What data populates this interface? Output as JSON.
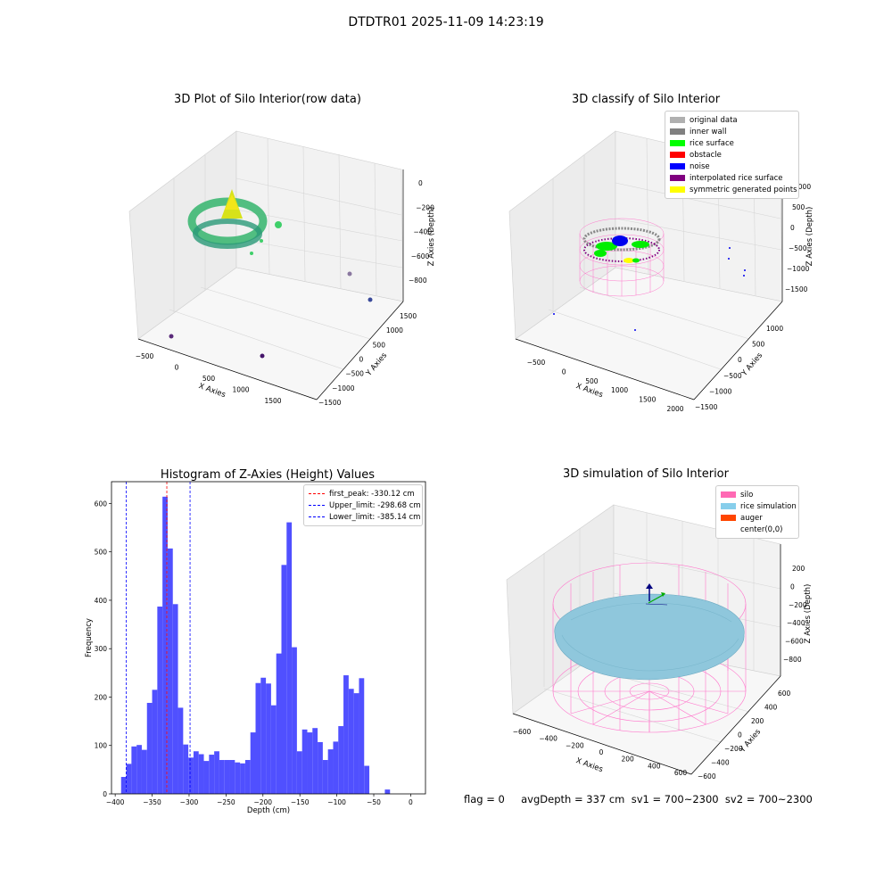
{
  "suptitle": "DTDTR01 2025-11-09 14:23:19",
  "colors": {
    "histogram_bar": "#5050ff",
    "first_peak_line": "#ff0000",
    "limit_lines": "#0000ff",
    "pane_fill": "#f2f2f2",
    "silo_wire": "#ff77cc",
    "rice_fill": "#8fc7dc"
  },
  "panels": {
    "raw": {
      "title": "3D Plot of Silo Interior(row data)",
      "xlabel": "X Axies",
      "ylabel": "Y Axies",
      "zlabel": "Z Axies (Depth)",
      "xticks": [
        "−500",
        "0",
        "500",
        "1000",
        "1500"
      ],
      "yticks": [
        "−1500",
        "−1000",
        "−500",
        "0",
        "500",
        "1000",
        "1500"
      ],
      "zticks": [
        "0",
        "−200",
        "−400",
        "−600",
        "−800"
      ]
    },
    "classify": {
      "title": "3D classify of Silo Interior",
      "xlabel": "X Axies",
      "ylabel": "Y Axies",
      "zlabel": "Z Axies (Depth)",
      "xticks": [
        "−500",
        "0",
        "500",
        "1000",
        "1500",
        "2000"
      ],
      "yticks": [
        "−1500",
        "−1000",
        "−500",
        "0",
        "500",
        "1000"
      ],
      "zticks": [
        "1000",
        "500",
        "0",
        "−500",
        "−1000",
        "−1500"
      ],
      "legend": [
        {
          "label": "original data",
          "color": "#b0b0b0"
        },
        {
          "label": "inner wall",
          "color": "#808080"
        },
        {
          "label": "rice surface",
          "color": "#00ff00"
        },
        {
          "label": "obstacle",
          "color": "#ff0000"
        },
        {
          "label": "noise",
          "color": "#0000ff"
        },
        {
          "label": "interpolated rice surface",
          "color": "#800080"
        },
        {
          "label": "symmetric generated points",
          "color": "#ffff00"
        }
      ]
    },
    "simulation": {
      "title": "3D simulation of Silo Interior",
      "xlabel": "X Axies",
      "ylabel": "Y Axies",
      "zlabel": "Z Axies (Depth)",
      "xticks": [
        "−600",
        "−400",
        "−200",
        "0",
        "200",
        "400",
        "600"
      ],
      "yticks": [
        "−600",
        "−400",
        "−200",
        "0",
        "200",
        "400",
        "600"
      ],
      "zticks": [
        "200",
        "0",
        "−200",
        "−400",
        "−600",
        "−800"
      ],
      "legend": [
        {
          "label": "silo",
          "color": "#ff69b4"
        },
        {
          "label": "rice simulation",
          "color": "#87ceeb"
        },
        {
          "label": "auger",
          "color": "#ff4500"
        },
        {
          "label": "center(0,0)",
          "color": ""
        }
      ]
    }
  },
  "footer": "flag = 0     avgDepth = 337 cm  sv1 = 700~2300  sv2 = 700~2300",
  "chart_data": [
    {
      "type": "bar",
      "title": "Histogram of Z-Axies (Height) Values",
      "xlabel": "Depth (cm)",
      "ylabel": "Frequency",
      "bin_width": 7,
      "bin_starts": [
        -392,
        -385,
        -378,
        -371,
        -364,
        -357,
        -350,
        -343,
        -336,
        -329,
        -322,
        -315,
        -308,
        -301,
        -294,
        -287,
        -280,
        -273,
        -266,
        -259,
        -252,
        -245,
        -238,
        -231,
        -224,
        -217,
        -210,
        -203,
        -196,
        -189,
        -182,
        -175,
        -168,
        -161,
        -154,
        -147,
        -140,
        -133,
        -126,
        -119,
        -112,
        -105,
        -98,
        -91,
        -84,
        -77,
        -70,
        -63,
        -56,
        -49,
        -42,
        -35,
        -28,
        -21,
        -14,
        -7,
        0
      ],
      "values": [
        35,
        62,
        98,
        101,
        91,
        188,
        215,
        387,
        614,
        507,
        392,
        178,
        102,
        75,
        88,
        82,
        68,
        81,
        88,
        70,
        70,
        70,
        65,
        63,
        70,
        127,
        229,
        240,
        228,
        183,
        290,
        473,
        561,
        303,
        88,
        133,
        127,
        136,
        107,
        70,
        92,
        108,
        140,
        245,
        217,
        208,
        239,
        58,
        0,
        0,
        0,
        9,
        0,
        0,
        0,
        0,
        0
      ],
      "xticks": [
        -400,
        -350,
        -300,
        -250,
        -200,
        -150,
        -100,
        -50,
        0
      ],
      "yticks": [
        0,
        100,
        200,
        300,
        400,
        500,
        600
      ],
      "xlim": [
        -405,
        20
      ],
      "ylim": [
        0,
        645
      ],
      "lines": [
        {
          "label": "first_peak: -330.12 cm",
          "x": -330.12,
          "color": "#ff0000"
        },
        {
          "label": "Upper_limit: -298.68 cm",
          "x": -298.68,
          "color": "#0000ff"
        },
        {
          "label": "Lower_limit: -385.14 cm",
          "x": -385.14,
          "color": "#0000ff"
        }
      ],
      "legend_position": "upper right"
    }
  ]
}
